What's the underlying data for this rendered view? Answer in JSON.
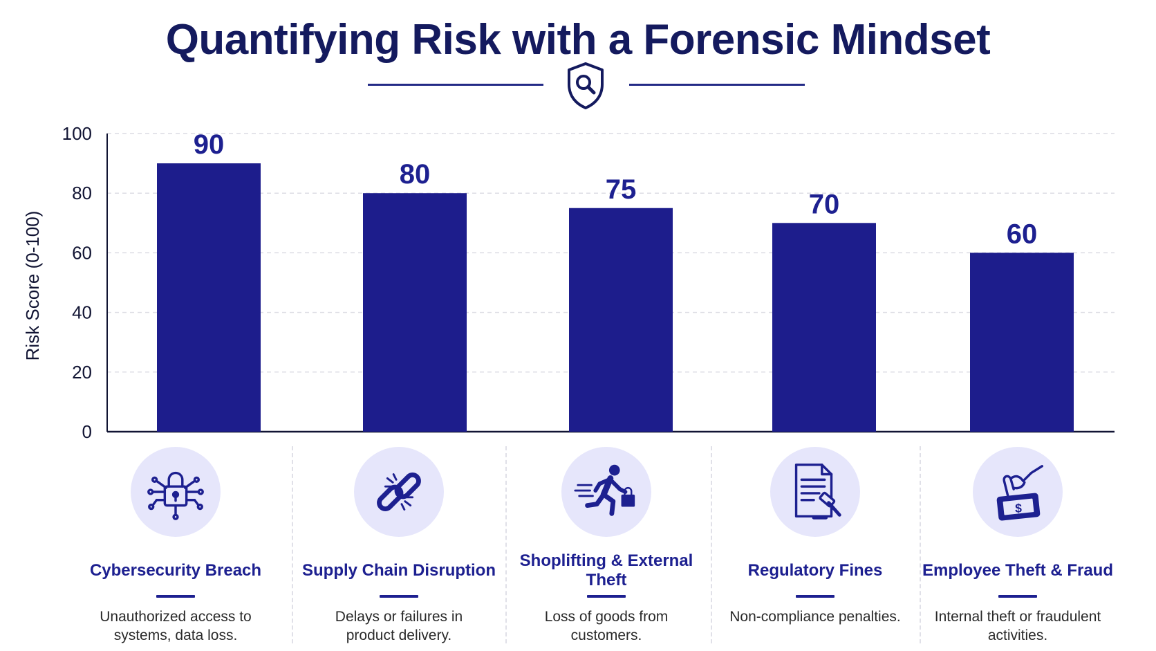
{
  "title": "Quantifying Risk with a Forensic Mindset",
  "colors": {
    "bar": "#1d1d8c",
    "text": "#141a5e",
    "icon_bg": "#e6e6fb",
    "grid": "#dcdce4"
  },
  "chart_data": {
    "type": "bar",
    "title": "Quantifying Risk with a Forensic Mindset",
    "ylabel": "Risk Score (0-100)",
    "xlabel": "",
    "ylim": [
      0,
      100
    ],
    "yticks": [
      0,
      20,
      40,
      60,
      80,
      100
    ],
    "grid": true,
    "categories": [
      "Cybersecurity Breach",
      "Supply Chain Disruption",
      "Shoplifting & External Theft",
      "Regulatory Fines",
      "Employee Theft & Fraud"
    ],
    "values": [
      90,
      80,
      75,
      70,
      60
    ],
    "data_labels": [
      "90",
      "80",
      "75",
      "70",
      "60"
    ]
  },
  "categories": [
    {
      "icon": "padlock-network-icon",
      "title": "Cybersecurity Breach",
      "description": "Unauthorized access to systems, data loss."
    },
    {
      "icon": "broken-chain-icon",
      "title": "Supply Chain Disruption",
      "description": "Delays or failures in product delivery."
    },
    {
      "icon": "running-thief-icon",
      "title": "Shoplifting & External Theft",
      "description": "Loss of goods from customers."
    },
    {
      "icon": "document-gavel-icon",
      "title": "Regulatory Fines",
      "description": "Non-compliance penalties."
    },
    {
      "icon": "hand-money-icon",
      "title": "Employee Theft & Fraud",
      "description": "Internal theft or fraudulent activities."
    }
  ]
}
